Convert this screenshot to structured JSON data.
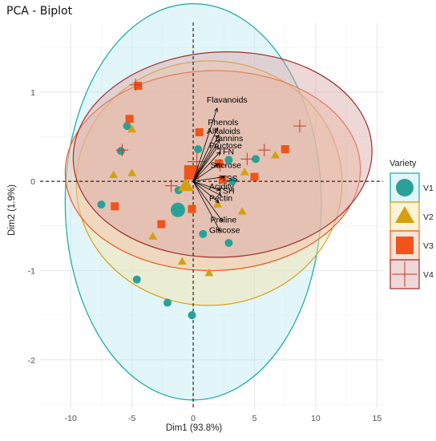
{
  "colors": {
    "V1": "#16a9a0",
    "V2": "#d6a21a",
    "V3": "#f2551d",
    "V4": "#a02c2c",
    "ellipse_V1_fill": "#bfe9ef",
    "ellipse_V2_fill": "#f7e2a8",
    "ellipse_V3_fill": "#f4c0a4",
    "ellipse_V4_fill": "#d9a7a7",
    "point_V1": "#2aa198",
    "point_V2": "#d4a010",
    "point_V3": "#f0541a",
    "point_V4": "#c23a2a"
  },
  "chart_data": {
    "type": "scatter",
    "title": "PCA - Biplot",
    "xlabel": "Dim1 (93.8%)",
    "ylabel": "Dim2 (1.9%)",
    "xlim": [
      -12.5,
      15.5
    ],
    "ylim": [
      -2.55,
      1.78
    ],
    "x_ticks": [
      -10,
      -5,
      0,
      5,
      10,
      15
    ],
    "y_ticks": [
      -2,
      -1,
      0,
      1
    ],
    "grid": true,
    "reference_lines": {
      "x": 0,
      "y": 0,
      "style": "dashed"
    },
    "legend": {
      "title": "Variety",
      "position": "right",
      "entries": [
        {
          "name": "V1",
          "shape": "circle"
        },
        {
          "name": "V2",
          "shape": "triangle"
        },
        {
          "name": "V3",
          "shape": "square"
        },
        {
          "name": "V4",
          "shape": "cross"
        }
      ]
    },
    "series": [
      {
        "name": "V1",
        "shape": "circle",
        "points": [
          [
            -5.4,
            0.62
          ],
          [
            -5.9,
            0.34
          ],
          [
            -7.5,
            -0.26
          ],
          [
            -4.6,
            -1.1
          ],
          [
            -2.1,
            -1.36
          ],
          [
            -0.1,
            -1.5
          ],
          [
            0.8,
            -0.59
          ],
          [
            2.9,
            -0.69
          ],
          [
            0.4,
            0.36
          ],
          [
            2.9,
            0.24
          ],
          [
            5.1,
            0.25
          ],
          [
            3.2,
            0.0
          ],
          [
            -1.2,
            -0.1
          ]
        ],
        "mean": [
          -1.25,
          -0.32
        ],
        "ellipse": {
          "cx": 0.0,
          "cy": -0.23,
          "rx": 10.45,
          "ry": 2.22,
          "angle": 0
        }
      },
      {
        "name": "V2",
        "shape": "triangle",
        "points": [
          [
            -5.0,
            0.58
          ],
          [
            -6.5,
            0.07
          ],
          [
            -3.3,
            -0.62
          ],
          [
            -0.9,
            -0.9
          ],
          [
            1.3,
            -1.03
          ],
          [
            2.0,
            -0.26
          ],
          [
            4.0,
            -0.34
          ],
          [
            6.7,
            0.29
          ],
          [
            -5.0,
            0.09
          ],
          [
            4.2,
            0.1
          ]
        ],
        "mean": [
          -0.6,
          -0.05
        ],
        "ellipse": {
          "cx": 1.3,
          "cy": -0.02,
          "rx": 10.85,
          "ry": 1.37,
          "angle": -1.5
        }
      },
      {
        "name": "V3",
        "shape": "square",
        "points": [
          [
            -4.5,
            1.07
          ],
          [
            -5.2,
            0.7
          ],
          [
            -6.4,
            -0.28
          ],
          [
            -2.6,
            -0.48
          ],
          [
            -0.1,
            -0.31
          ],
          [
            2.1,
            0.2
          ],
          [
            5.0,
            0.05
          ],
          [
            7.5,
            0.36
          ],
          [
            2.4,
            0.02
          ],
          [
            0.5,
            0.55
          ],
          [
            -0.4,
            0.1
          ]
        ],
        "mean": [
          -0.15,
          0.1
        ],
        "ellipse": {
          "cx": 1.6,
          "cy": 0.12,
          "rx": 12.05,
          "ry": 1.12,
          "angle": -1.2
        }
      },
      {
        "name": "V4",
        "shape": "cross",
        "points": [
          [
            -4.7,
            1.08
          ],
          [
            -5.8,
            0.35
          ],
          [
            -1.8,
            -0.05
          ],
          [
            5.8,
            0.35
          ],
          [
            8.7,
            0.62
          ],
          [
            2.2,
            0.18
          ],
          [
            4.4,
            0.25
          ]
        ],
        "mean": [
          0.3,
          0.22
        ],
        "ellipse": {
          "cx": 2.4,
          "cy": 0.3,
          "rx": 12.2,
          "ry": 1.15,
          "angle": -2.5
        }
      }
    ],
    "variables": [
      {
        "name": "Flavanoids",
        "end": [
          1.95,
          0.82
        ]
      },
      {
        "name": "Phenols",
        "end": [
          2.0,
          0.6
        ]
      },
      {
        "name": "Alkaloids",
        "end": [
          2.1,
          0.52
        ]
      },
      {
        "name": "Tannins",
        "end": [
          2.15,
          0.47
        ]
      },
      {
        "name": "Fructose",
        "end": [
          2.05,
          0.4
        ]
      },
      {
        "name": "TFN",
        "end": [
          2.2,
          0.33
        ]
      },
      {
        "name": "Sucrose",
        "end": [
          2.1,
          0.2
        ]
      },
      {
        "name": "TSS",
        "end": [
          2.5,
          0.05
        ]
      },
      {
        "name": "Acidity",
        "end": [
          2.2,
          -0.1
        ]
      },
      {
        "name": "TSH",
        "end": [
          2.3,
          -0.16
        ]
      },
      {
        "name": "Pectin",
        "end": [
          2.1,
          -0.24
        ]
      },
      {
        "name": "Proline",
        "end": [
          2.4,
          -0.45
        ]
      },
      {
        "name": "Glucose",
        "end": [
          2.2,
          -0.56
        ]
      }
    ],
    "labels": [
      {
        "text": "Flavanoids",
        "x": 1.1,
        "y": 0.88
      },
      {
        "text": "Phenols",
        "x": 1.2,
        "y": 0.63
      },
      {
        "text": "Alkaloids",
        "x": 1.1,
        "y": 0.53
      },
      {
        "text": "Tannins",
        "x": 1.7,
        "y": 0.45
      },
      {
        "text": "Fructose",
        "x": 1.3,
        "y": 0.37
      },
      {
        "text": "TFN",
        "x": 2.0,
        "y": 0.3
      },
      {
        "text": "Sucrose",
        "x": 1.4,
        "y": 0.15
      },
      {
        "text": "TSS",
        "x": 2.3,
        "y": 0.0
      },
      {
        "text": "Acidity",
        "x": 1.3,
        "y": -0.09
      },
      {
        "text": "TSH",
        "x": 2.0,
        "y": -0.14
      },
      {
        "text": "Pectin",
        "x": 1.3,
        "y": -0.22
      },
      {
        "text": "Proline",
        "x": 1.4,
        "y": -0.46
      },
      {
        "text": "Glucose",
        "x": 1.3,
        "y": -0.58
      }
    ]
  }
}
